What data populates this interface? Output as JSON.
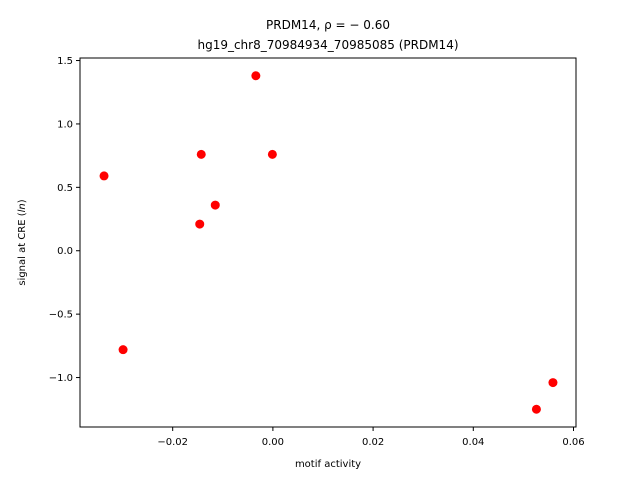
{
  "chart_data": {
    "type": "scatter",
    "title_line1": "PRDM14, ρ = − 0.60",
    "title_line2": "hg19_chr8_70984934_70985085 (PRDM14)",
    "xlabel": "motif activity",
    "ylabel": "signal at CRE (ln)",
    "xlim": [
      -0.0385,
      0.0605
    ],
    "ylim": [
      -1.39,
      1.52
    ],
    "x_ticks": [
      -0.02,
      0.0,
      0.02,
      0.04,
      0.06
    ],
    "x_tick_labels": [
      "−0.02",
      "0.00",
      "0.02",
      "0.04",
      "0.06"
    ],
    "y_ticks": [
      -1.0,
      -0.5,
      0.0,
      0.5,
      1.0,
      1.5
    ],
    "y_tick_labels": [
      "−1.0",
      "−0.5",
      "0.0",
      "0.5",
      "1.0",
      "1.5"
    ],
    "grid": false,
    "point_color": "#ff0000",
    "points": [
      {
        "x": -0.0337,
        "y": 0.59
      },
      {
        "x": -0.0299,
        "y": -0.78
      },
      {
        "x": -0.0143,
        "y": 0.76
      },
      {
        "x": -0.0146,
        "y": 0.21
      },
      {
        "x": -0.0115,
        "y": 0.36
      },
      {
        "x": -0.0034,
        "y": 1.38
      },
      {
        "x": -0.0001,
        "y": 0.76
      },
      {
        "x": 0.0526,
        "y": -1.25
      },
      {
        "x": 0.0559,
        "y": -1.04
      }
    ]
  }
}
